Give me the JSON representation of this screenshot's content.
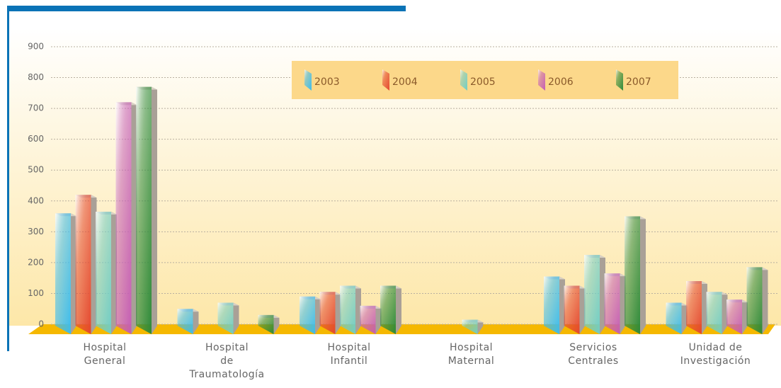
{
  "chart_data": {
    "type": "bar3d",
    "categories": [
      [
        "Hospital",
        "General"
      ],
      [
        "Hospital",
        "de",
        "Traumatología"
      ],
      [
        "Hospital",
        "Infantil"
      ],
      [
        "Hospital",
        "Maternal"
      ],
      [
        "Servicios",
        "Centrales"
      ],
      [
        "Unidad de",
        "Investigación"
      ]
    ],
    "series": [
      {
        "name": "2003",
        "color": "#3bbcee",
        "values": [
          360,
          50,
          90,
          null,
          155,
          70
        ]
      },
      {
        "name": "2004",
        "color": "#e4472f",
        "values": [
          420,
          null,
          105,
          null,
          125,
          140
        ]
      },
      {
        "name": "2005",
        "color": "#6fcdc6",
        "values": [
          365,
          70,
          125,
          15,
          225,
          105
        ]
      },
      {
        "name": "2006",
        "color": "#c45db5",
        "values": [
          720,
          null,
          60,
          null,
          165,
          80
        ]
      },
      {
        "name": "2007",
        "color": "#2d8a3a",
        "values": [
          770,
          30,
          125,
          null,
          350,
          185
        ]
      }
    ],
    "ylim": [
      0,
      900
    ],
    "yticks": [
      0,
      100,
      200,
      300,
      400,
      500,
      600,
      700,
      800,
      900
    ],
    "grid": true
  }
}
